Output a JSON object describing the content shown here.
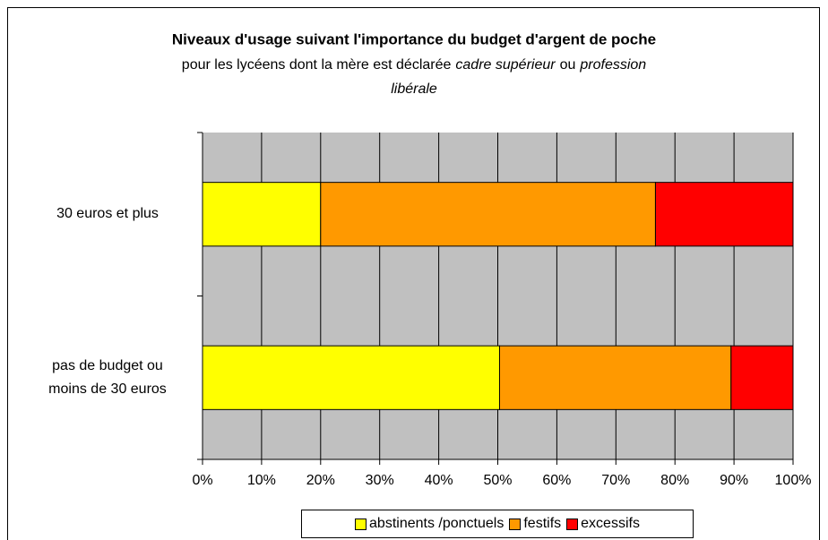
{
  "chart_data": {
    "type": "stacked_barh",
    "title": "Niveaux d'usage suivant l'importance du budget d'argent de poche",
    "subtitle": [
      {
        "text": "pour les lycéens dont la mère est déclarée",
        "italic": false
      },
      {
        "text": "cadre supérieur",
        "italic": true
      },
      {
        "text": "ou",
        "italic": false
      },
      {
        "text": "profession",
        "italic": true
      },
      {
        "text": "libérale",
        "italic": true
      }
    ],
    "categories": [
      "pas de budget ou moins de 30 euros",
      "30 euros et plus"
    ],
    "series": [
      {
        "name": "abstinents /ponctuels",
        "color": "#ffff00",
        "values": [
          50.3,
          20
        ]
      },
      {
        "name": "festifs",
        "color": "#ff9900",
        "values": [
          39.2,
          56.7
        ]
      },
      {
        "name": "excessifs",
        "color": "#ff0000",
        "values": [
          10.5,
          23.3
        ]
      }
    ],
    "xlim": [
      0,
      100
    ],
    "xticks": [
      {
        "value": 0,
        "label": "0%"
      },
      {
        "value": 10,
        "label": "10%"
      },
      {
        "value": 20,
        "label": "20%"
      },
      {
        "value": 30,
        "label": "30%"
      },
      {
        "value": 40,
        "label": "40%"
      },
      {
        "value": 50,
        "label": "50%"
      },
      {
        "value": 60,
        "label": "60%"
      },
      {
        "value": 70,
        "label": "70%"
      },
      {
        "value": 80,
        "label": "80%"
      },
      {
        "value": 90,
        "label": "90%"
      },
      {
        "value": 100,
        "label": "100%"
      }
    ],
    "grid": true,
    "plot_background": "#c0c0c0",
    "legend": "bottom"
  }
}
